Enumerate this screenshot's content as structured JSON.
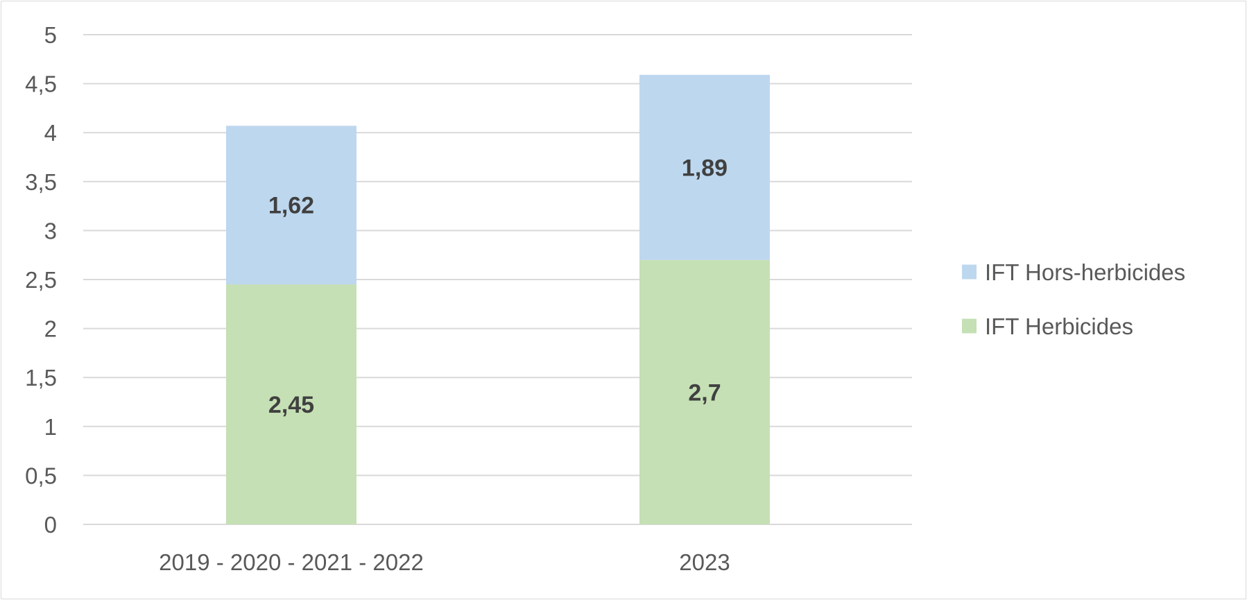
{
  "chart_data": {
    "type": "bar",
    "stacked": true,
    "title": "",
    "xlabel": "",
    "ylabel": "",
    "ylim": [
      0,
      5
    ],
    "y_tick_step": 0.5,
    "y_tick_labels": [
      "0",
      "0,5",
      "1",
      "1,5",
      "2",
      "2,5",
      "3",
      "3,5",
      "4",
      "4,5",
      "5"
    ],
    "grid": true,
    "legend_position": "right",
    "categories": [
      "2019 - 2020 - 2021 - 2022",
      "2023"
    ],
    "series": [
      {
        "name": "IFT Herbicides",
        "values": [
          2.45,
          2.7
        ],
        "labels": [
          "2,45",
          "2,7"
        ],
        "color": "#c5e0b4"
      },
      {
        "name": "IFT Hors-herbicides",
        "values": [
          1.62,
          1.89
        ],
        "labels": [
          "1,62",
          "1,89"
        ],
        "color": "#bdd7ee"
      }
    ],
    "legend_order": [
      "IFT Hors-herbicides",
      "IFT Herbicides"
    ]
  }
}
